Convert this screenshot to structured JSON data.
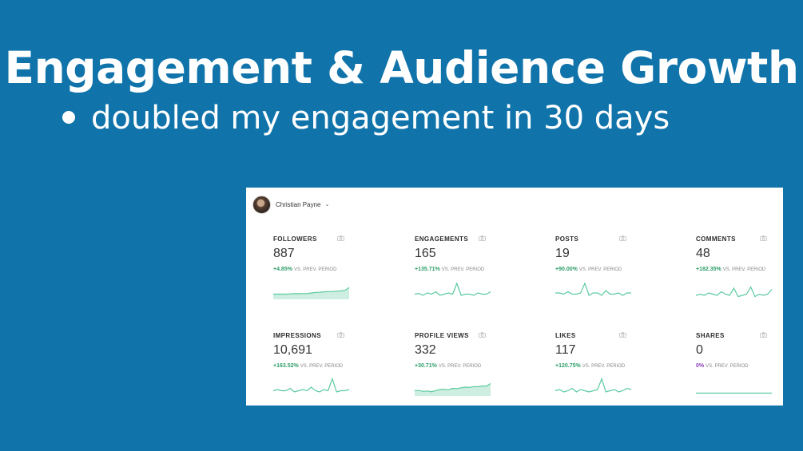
{
  "slide": {
    "title": "Engagement & Audience Growth",
    "bullet": "doubled my engagement in 30 days"
  },
  "dashboard": {
    "profile_name": "Christian Payne",
    "comparison_label": "VS. PREV. PERIOD",
    "colors": {
      "positive": "#2e9d6a",
      "neutral": "#8c3fb8",
      "sparkline": "#5bcaa0"
    },
    "metrics": [
      {
        "label": "FOLLOWERS",
        "value": "887",
        "change": "+4.85%",
        "trend": [
          3,
          3,
          3,
          3,
          3.2,
          3.4,
          3.4,
          3.5,
          3.5,
          4,
          4.5,
          4.6,
          5,
          5.1,
          5.2,
          5.5,
          5.8,
          6.2,
          8.5
        ]
      },
      {
        "label": "ENGAGEMENTS",
        "value": "165",
        "change": "+135.71%",
        "trend": [
          3,
          3.5,
          2,
          4,
          3,
          5,
          2,
          3,
          4,
          3,
          12,
          2,
          3,
          3,
          2,
          4,
          3,
          3,
          5
        ]
      },
      {
        "label": "POSTS",
        "value": "19",
        "change": "+90.00%",
        "trend": [
          4,
          4,
          3,
          5,
          3,
          3,
          4,
          12,
          2,
          4,
          4,
          2,
          6,
          3,
          3,
          4,
          2,
          4,
          4
        ]
      },
      {
        "label": "COMMENTS",
        "value": "48",
        "change": "+182.35%",
        "trend": [
          2,
          3,
          2,
          4,
          3,
          2,
          5,
          3,
          2,
          8,
          1,
          2,
          3,
          9,
          1,
          3,
          2,
          3,
          7
        ]
      },
      {
        "label": "IMPRESSIONS",
        "value": "10,691",
        "change": "+163.52%",
        "trend": [
          3,
          4,
          3,
          3,
          5,
          2,
          3,
          4,
          3,
          6,
          3,
          2,
          4,
          3,
          13,
          2,
          3,
          3,
          4
        ]
      },
      {
        "label": "PROFILE VIEWS",
        "value": "332",
        "change": "+30.71%",
        "trend": [
          3,
          3.2,
          2.5,
          2.8,
          2.2,
          3.2,
          4,
          4.2,
          3.8,
          5,
          4.8,
          5.5,
          6,
          5.8,
          6.5,
          6.3,
          7,
          6.8,
          9
        ]
      },
      {
        "label": "LIKES",
        "value": "117",
        "change": "+120.75%",
        "trend": [
          3,
          4,
          2,
          3,
          5,
          2,
          4,
          3,
          2,
          3,
          4,
          13,
          2,
          3,
          4,
          2,
          3,
          5,
          4
        ]
      },
      {
        "label": "SHARES",
        "value": "0",
        "change": "0%",
        "trend": [
          1,
          1,
          1,
          1,
          1,
          1,
          1,
          1,
          1,
          1,
          1,
          1,
          1,
          1,
          1,
          1,
          1,
          1,
          1
        ]
      }
    ]
  }
}
